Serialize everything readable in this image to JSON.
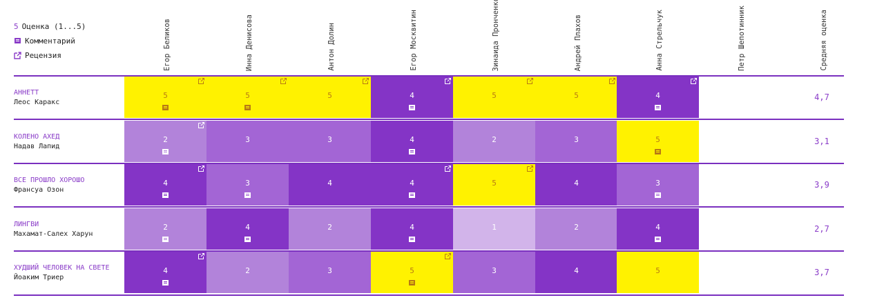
{
  "legend": {
    "score_num": "5",
    "score_label": "Оценка (1...5)",
    "comment_label": "Комментарий",
    "review_label": "Рецензия"
  },
  "critics": [
    "Егор Беликов",
    "Инна Денисова",
    "Антон Долин",
    "Егор Москвитин",
    "Зинаида Пронченко",
    "Андрей Плахов",
    "Анна Стрельчук",
    "Петр Шепотинник",
    "Средняя оценка"
  ],
  "colors": {
    "yellow": "#fff200",
    "s1": "#d2b4ea",
    "s2": "#b283da",
    "s3": "#a365d5",
    "s4": "#8434c6",
    "accent": "#8a3cc8",
    "line": "#7a2fbf"
  },
  "films": [
    {
      "title": "АННЕТТ",
      "director": "Леос Каракс",
      "average": "4,7",
      "cells": [
        {
          "score": 5,
          "yellow": true,
          "comment": true,
          "review": true
        },
        {
          "score": 5,
          "yellow": true,
          "comment": true,
          "review": true
        },
        {
          "score": 5,
          "yellow": true,
          "comment": false,
          "review": true
        },
        {
          "score": 4,
          "yellow": false,
          "comment": true,
          "review": true
        },
        {
          "score": 5,
          "yellow": true,
          "comment": false,
          "review": true
        },
        {
          "score": 5,
          "yellow": true,
          "comment": false,
          "review": true
        },
        {
          "score": 4,
          "yellow": false,
          "comment": true,
          "review": true
        }
      ]
    },
    {
      "title": "КОЛЕНО АХЕД",
      "director": "Надав Лапид",
      "average": "3,1",
      "cells": [
        {
          "score": 2,
          "yellow": false,
          "comment": true,
          "review": true
        },
        {
          "score": 3,
          "yellow": false,
          "comment": false,
          "review": false
        },
        {
          "score": 3,
          "yellow": false,
          "comment": false,
          "review": false
        },
        {
          "score": 4,
          "yellow": false,
          "comment": true,
          "review": false
        },
        {
          "score": 2,
          "yellow": false,
          "comment": false,
          "review": false
        },
        {
          "score": 3,
          "yellow": false,
          "comment": false,
          "review": false
        },
        {
          "score": 5,
          "yellow": true,
          "comment": true,
          "review": false
        }
      ]
    },
    {
      "title": "ВСЕ ПРОШЛО ХОРОШО",
      "director": "Франсуа Озон",
      "average": "3,9",
      "cells": [
        {
          "score": 4,
          "yellow": false,
          "comment": true,
          "review": true
        },
        {
          "score": 3,
          "yellow": false,
          "comment": true,
          "review": false
        },
        {
          "score": 4,
          "yellow": false,
          "comment": false,
          "review": false
        },
        {
          "score": 4,
          "yellow": false,
          "comment": true,
          "review": true
        },
        {
          "score": 5,
          "yellow": true,
          "comment": false,
          "review": true
        },
        {
          "score": 4,
          "yellow": false,
          "comment": false,
          "review": false
        },
        {
          "score": 3,
          "yellow": false,
          "comment": true,
          "review": false
        }
      ]
    },
    {
      "title": "ЛИНГВИ",
      "director": "Махамат-Салех Харун",
      "average": "2,7",
      "cells": [
        {
          "score": 2,
          "yellow": false,
          "comment": true,
          "review": false
        },
        {
          "score": 4,
          "yellow": false,
          "comment": true,
          "review": false
        },
        {
          "score": 2,
          "yellow": false,
          "comment": false,
          "review": false
        },
        {
          "score": 4,
          "yellow": false,
          "comment": true,
          "review": false
        },
        {
          "score": 1,
          "yellow": false,
          "comment": false,
          "review": false
        },
        {
          "score": 2,
          "yellow": false,
          "comment": false,
          "review": false
        },
        {
          "score": 4,
          "yellow": false,
          "comment": true,
          "review": false
        }
      ]
    },
    {
      "title": "ХУДШИЙ ЧЕЛОВЕК НА СВЕТЕ",
      "director": "Йоаким Триер",
      "average": "3,7",
      "cells": [
        {
          "score": 4,
          "yellow": false,
          "comment": true,
          "review": true
        },
        {
          "score": 2,
          "yellow": false,
          "comment": false,
          "review": false
        },
        {
          "score": 3,
          "yellow": false,
          "comment": false,
          "review": false
        },
        {
          "score": 5,
          "yellow": true,
          "comment": true,
          "review": true
        },
        {
          "score": 3,
          "yellow": false,
          "comment": false,
          "review": false
        },
        {
          "score": 4,
          "yellow": false,
          "comment": false,
          "review": false
        },
        {
          "score": 5,
          "yellow": true,
          "comment": false,
          "review": false
        }
      ]
    }
  ]
}
